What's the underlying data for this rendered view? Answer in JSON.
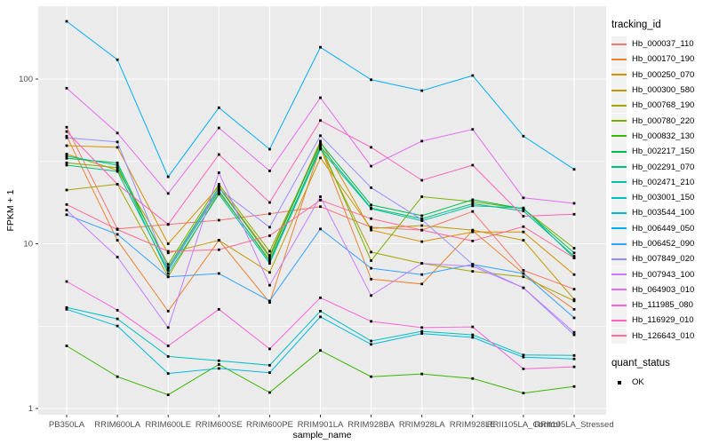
{
  "chart_data": {
    "type": "line",
    "title": "",
    "xlabel": "sample_name",
    "ylabel": "FPKM + 1",
    "y_scale": "log10",
    "y_ticks": [
      1,
      10,
      100
    ],
    "y_minor": [
      3.16,
      31.6
    ],
    "ylim": [
      1,
      300
    ],
    "grid": true,
    "point_marker": "black-square",
    "categories": [
      "PB350LA",
      "RRIM600LA",
      "RRIM600LE",
      "RRIM600SE",
      "RRIM600PE",
      "RRIM901LA",
      "RRIM928BA",
      "RRIM928LA",
      "RRIM928LE",
      "RRII105LA_Control",
      "RRII105LA_Stressed"
    ],
    "series": [
      {
        "name": "Hb_000037_110",
        "color": "#F8766D",
        "values": [
          51,
          12.3,
          13.1,
          13.9,
          15.2,
          16.8,
          12.6,
          12.1,
          15.7,
          6.9,
          5.3
        ]
      },
      {
        "name": "Hb_000170_190",
        "color": "#EA8331",
        "values": [
          45,
          10.5,
          3.9,
          10.5,
          4.4,
          38.5,
          6.1,
          5.7,
          12,
          6.6,
          4
        ]
      },
      {
        "name": "Hb_000250_070",
        "color": "#D89000",
        "values": [
          39.4,
          38.5,
          10,
          22.3,
          8.5,
          42,
          12.1,
          10.3,
          11.8,
          11.8,
          6.5
        ]
      },
      {
        "name": "Hb_000300_580",
        "color": "#C09B00",
        "values": [
          35,
          28,
          8.8,
          10.5,
          6.7,
          33.2,
          12.4,
          12.9,
          12.1,
          10.5,
          4.6
        ]
      },
      {
        "name": "Hb_000768_190",
        "color": "#A3A500",
        "values": [
          21.2,
          23,
          6.3,
          20.5,
          8,
          38,
          8.9,
          7.6,
          6.8,
          6.3,
          4.5
        ]
      },
      {
        "name": "Hb_000780_220",
        "color": "#7CAE00",
        "values": [
          31,
          29,
          7.5,
          23,
          9,
          40,
          7.9,
          19.3,
          18,
          16.3,
          9.4
        ]
      },
      {
        "name": "Hb_000832_130",
        "color": "#39B600",
        "values": [
          2.4,
          1.56,
          1.21,
          1.85,
          1.25,
          2.25,
          1.56,
          1.62,
          1.52,
          1.24,
          1.36
        ]
      },
      {
        "name": "Hb_002217_150",
        "color": "#00BB4E",
        "values": [
          33,
          31,
          7.2,
          22,
          8.3,
          41,
          17.2,
          14.8,
          18.5,
          16.3,
          8.8
        ]
      },
      {
        "name": "Hb_002291_070",
        "color": "#00BF7D",
        "values": [
          30,
          27.5,
          6.9,
          21,
          7.8,
          39,
          16.5,
          14.2,
          17.5,
          15.8,
          8.4
        ]
      },
      {
        "name": "Hb_002471_210",
        "color": "#00C1A3",
        "values": [
          34,
          30,
          6.6,
          20,
          7.6,
          37.5,
          16.3,
          13.8,
          17,
          16.5,
          8.2
        ]
      },
      {
        "name": "Hb_003001_150",
        "color": "#00BFC4",
        "values": [
          4.1,
          3.5,
          2.07,
          1.95,
          1.83,
          3.9,
          2.57,
          2.94,
          2.8,
          2.11,
          2.1
        ]
      },
      {
        "name": "Hb_003544_100",
        "color": "#00BAE0",
        "values": [
          4,
          3.17,
          1.63,
          1.75,
          1.65,
          3.6,
          2.45,
          2.85,
          2.7,
          2.05,
          2
        ]
      },
      {
        "name": "Hb_006449_050",
        "color": "#00B0F6",
        "values": [
          224,
          131,
          25.5,
          67,
          37.5,
          156,
          99,
          85,
          105,
          45,
          28.3
        ]
      },
      {
        "name": "Hb_006452_090",
        "color": "#35A2FF",
        "values": [
          15,
          11.4,
          6.3,
          6.6,
          4.5,
          12.3,
          7.1,
          6.5,
          7.5,
          6.6,
          3.55
        ]
      },
      {
        "name": "Hb_007849_020",
        "color": "#9590FF",
        "values": [
          44,
          41.5,
          7,
          21.5,
          12.6,
          45.3,
          21.9,
          14,
          7.5,
          5.4,
          2.8
        ]
      },
      {
        "name": "Hb_007943_100",
        "color": "#C77CFF",
        "values": [
          16,
          8.3,
          3.1,
          27,
          5.6,
          19.3,
          4.85,
          7.6,
          7.3,
          5.4,
          2.9
        ]
      },
      {
        "name": "Hb_064903_010",
        "color": "#E76BF3",
        "values": [
          88,
          47,
          20.2,
          50.5,
          27.7,
          77,
          29.6,
          42,
          49.5,
          19,
          17.6
        ]
      },
      {
        "name": "Hb_111985_080",
        "color": "#FA62DB",
        "values": [
          5.9,
          3.95,
          2.4,
          4,
          2.3,
          4.7,
          3.38,
          3.1,
          3.13,
          1.74,
          1.79
        ]
      },
      {
        "name": "Hb_116929_010",
        "color": "#FF62BC",
        "values": [
          48,
          23,
          13.1,
          34.8,
          17.8,
          56,
          38.5,
          24.3,
          30,
          14.7,
          15.1
        ]
      },
      {
        "name": "Hb_126643_010",
        "color": "#FF6A98",
        "values": [
          17.3,
          12.2,
          9,
          9.2,
          11.2,
          18.4,
          14.2,
          12.1,
          10.4,
          12.7,
          8.2
        ]
      }
    ],
    "legend": {
      "title": "tracking_id",
      "position": "right"
    },
    "legend2": {
      "title": "quant_status",
      "items": [
        {
          "label": "OK",
          "symbol": "black-square"
        }
      ]
    },
    "colors": {
      "panel_bg": "#EBEBEB",
      "grid": "#FFFFFF",
      "axis_text": "#4D4D4D",
      "axis_title": "#000000",
      "tick_mark": "#333333",
      "point": "#000000",
      "legend_key_bg": "#F2F2F2"
    }
  }
}
